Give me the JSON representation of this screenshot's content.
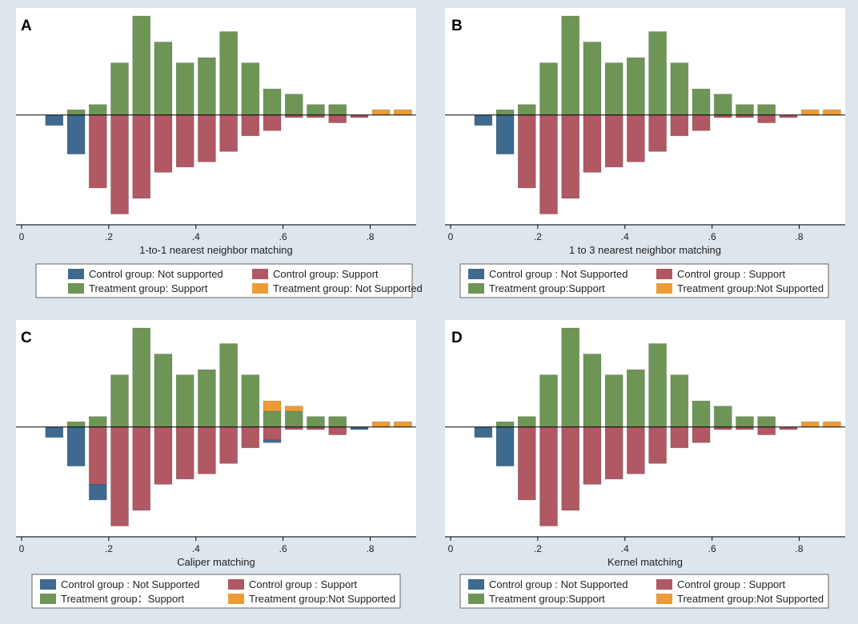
{
  "chart_data": [
    {
      "type": "bar",
      "panel": "A",
      "title": "",
      "xlabel": "1-to-1 nearest neighbor matching",
      "ylabel": "",
      "xlim": [
        0,
        0.9
      ],
      "ylim": [
        -20,
        19
      ],
      "xticks": [
        0,
        0.2,
        0.4,
        0.6,
        0.8
      ],
      "xtick_labels": [
        "0",
        ".2",
        ".4",
        ".6",
        ".8"
      ],
      "grid": false,
      "legend": {
        "position": "bottom",
        "entries": [
          {
            "key": "control_not_supported",
            "label": "Control group: Not supported"
          },
          {
            "key": "control_support",
            "label": "Control group: Support"
          },
          {
            "key": "treatment_support",
            "label": "Treatment group: Support"
          },
          {
            "key": "treatment_not_supported",
            "label": "Treatment group: Not Supported"
          }
        ]
      },
      "bin_centers": [
        0.075,
        0.125,
        0.175,
        0.225,
        0.275,
        0.325,
        0.375,
        0.425,
        0.475,
        0.525,
        0.575,
        0.625,
        0.675,
        0.725,
        0.775,
        0.825,
        0.875
      ],
      "series": [
        {
          "key": "treatment_support",
          "direction": "up",
          "values": [
            0,
            1,
            2,
            10,
            19,
            14,
            10,
            11,
            16,
            10,
            5,
            4,
            2,
            2,
            0,
            0,
            0
          ]
        },
        {
          "key": "treatment_not_supported",
          "direction": "up",
          "values": [
            0,
            0,
            0,
            0,
            0,
            0,
            0,
            0,
            0,
            0,
            0,
            0,
            0,
            0,
            0,
            1,
            1
          ]
        },
        {
          "key": "control_support",
          "direction": "down",
          "values": [
            0,
            0,
            14,
            19,
            16,
            11,
            10,
            9,
            7,
            4,
            3,
            0.5,
            0.5,
            1.5,
            0.5,
            0,
            0
          ]
        },
        {
          "key": "control_not_supported",
          "direction": "down",
          "values": [
            2,
            7.5,
            0,
            0,
            0,
            0,
            0,
            0,
            0,
            0,
            0,
            0,
            0,
            0,
            0,
            0,
            0
          ]
        }
      ]
    },
    {
      "type": "bar",
      "panel": "B",
      "title": "",
      "xlabel": "1 to 3 nearest neighbor matching",
      "ylabel": "",
      "xlim": [
        0,
        0.9
      ],
      "ylim": [
        -20,
        19
      ],
      "xticks": [
        0,
        0.2,
        0.4,
        0.6,
        0.8
      ],
      "xtick_labels": [
        "0",
        ".2",
        ".4",
        ".6",
        ".8"
      ],
      "grid": false,
      "legend": {
        "position": "bottom",
        "entries": [
          {
            "key": "control_not_supported",
            "label": "Control group : Not Supported"
          },
          {
            "key": "control_support",
            "label": "Control group : Support"
          },
          {
            "key": "treatment_support",
            "label": "Treatment group:Support"
          },
          {
            "key": "treatment_not_supported",
            "label": "Treatment group:Not Supported"
          }
        ]
      },
      "bin_centers": [
        0.075,
        0.125,
        0.175,
        0.225,
        0.275,
        0.325,
        0.375,
        0.425,
        0.475,
        0.525,
        0.575,
        0.625,
        0.675,
        0.725,
        0.775,
        0.825,
        0.875
      ],
      "series": [
        {
          "key": "treatment_support",
          "direction": "up",
          "values": [
            0,
            1,
            2,
            10,
            19,
            14,
            10,
            11,
            16,
            10,
            5,
            4,
            2,
            2,
            0,
            0,
            0
          ]
        },
        {
          "key": "treatment_not_supported",
          "direction": "up",
          "values": [
            0,
            0,
            0,
            0,
            0,
            0,
            0,
            0,
            0,
            0,
            0,
            0,
            0,
            0,
            0,
            1,
            1
          ]
        },
        {
          "key": "control_support",
          "direction": "down",
          "values": [
            0,
            0,
            14,
            19,
            16,
            11,
            10,
            9,
            7,
            4,
            3,
            0.5,
            0.5,
            1.5,
            0.5,
            0,
            0
          ]
        },
        {
          "key": "control_not_supported",
          "direction": "down",
          "values": [
            2,
            7.5,
            0,
            0,
            0,
            0,
            0,
            0,
            0,
            0,
            0,
            0,
            0,
            0,
            0,
            0,
            0
          ]
        }
      ]
    },
    {
      "type": "bar",
      "panel": "C",
      "title": "",
      "xlabel": "Caliper matching",
      "ylabel": "",
      "xlim": [
        0,
        0.9
      ],
      "ylim": [
        -20,
        19
      ],
      "xticks": [
        0,
        0.2,
        0.4,
        0.6,
        0.8
      ],
      "xtick_labels": [
        "0",
        ".2",
        ".4",
        ".6",
        ".8"
      ],
      "grid": false,
      "legend": {
        "position": "bottom",
        "entries": [
          {
            "key": "control_not_supported",
            "label": "Control group : Not Supported"
          },
          {
            "key": "control_support",
            "label": "Control group : Support"
          },
          {
            "key": "treatment_support",
            "label": "Treatment group：Support"
          },
          {
            "key": "treatment_not_supported",
            "label": "Treatment group:Not Supported"
          }
        ]
      },
      "bin_centers": [
        0.075,
        0.125,
        0.175,
        0.225,
        0.275,
        0.325,
        0.375,
        0.425,
        0.475,
        0.525,
        0.575,
        0.625,
        0.675,
        0.725,
        0.775,
        0.825,
        0.875
      ],
      "series": [
        {
          "key": "treatment_support",
          "direction": "up",
          "values": [
            0,
            1,
            2,
            10,
            19,
            14,
            10,
            11,
            16,
            10,
            3,
            3,
            2,
            2,
            0,
            0,
            0
          ]
        },
        {
          "key": "treatment_not_supported",
          "direction": "up",
          "values": [
            0,
            0,
            0,
            0,
            0,
            0,
            0,
            0,
            0,
            0,
            2,
            1,
            0,
            0,
            0,
            1,
            1
          ]
        },
        {
          "key": "control_support",
          "direction": "down",
          "values": [
            0,
            0,
            11,
            19,
            16,
            11,
            10,
            9,
            7,
            4,
            2.5,
            0.5,
            0.5,
            1.5,
            0,
            0,
            0
          ]
        },
        {
          "key": "control_not_supported",
          "direction": "down",
          "values": [
            2,
            7.5,
            3,
            0,
            0,
            0,
            0,
            0,
            0,
            0,
            0.5,
            0,
            0,
            0,
            0.5,
            0,
            0
          ]
        }
      ]
    },
    {
      "type": "bar",
      "panel": "D",
      "title": "",
      "xlabel": "Kernel matching",
      "ylabel": "",
      "xlim": [
        0,
        0.9
      ],
      "ylim": [
        -20,
        19
      ],
      "xticks": [
        0,
        0.2,
        0.4,
        0.6,
        0.8
      ],
      "xtick_labels": [
        "0",
        ".2",
        ".4",
        ".6",
        ".8"
      ],
      "grid": false,
      "legend": {
        "position": "bottom",
        "entries": [
          {
            "key": "control_not_supported",
            "label": "Control group : Not Supported"
          },
          {
            "key": "control_support",
            "label": "Control group : Support"
          },
          {
            "key": "treatment_support",
            "label": "Treatment group:Support"
          },
          {
            "key": "treatment_not_supported",
            "label": "Treatment group:Not Supported"
          }
        ]
      },
      "bin_centers": [
        0.075,
        0.125,
        0.175,
        0.225,
        0.275,
        0.325,
        0.375,
        0.425,
        0.475,
        0.525,
        0.575,
        0.625,
        0.675,
        0.725,
        0.775,
        0.825,
        0.875
      ],
      "series": [
        {
          "key": "treatment_support",
          "direction": "up",
          "values": [
            0,
            1,
            2,
            10,
            19,
            14,
            10,
            11,
            16,
            10,
            5,
            4,
            2,
            2,
            0,
            0,
            0
          ]
        },
        {
          "key": "treatment_not_supported",
          "direction": "up",
          "values": [
            0,
            0,
            0,
            0,
            0,
            0,
            0,
            0,
            0,
            0,
            0,
            0,
            0,
            0,
            0,
            1,
            1
          ]
        },
        {
          "key": "control_support",
          "direction": "down",
          "values": [
            0,
            0,
            14,
            19,
            16,
            11,
            10,
            9,
            7,
            4,
            3,
            0.5,
            0.5,
            1.5,
            0.5,
            0,
            0
          ]
        },
        {
          "key": "control_not_supported",
          "direction": "down",
          "values": [
            2,
            7.5,
            0,
            0,
            0,
            0,
            0,
            0,
            0,
            0,
            0,
            0,
            0,
            0,
            0,
            0,
            0
          ]
        }
      ]
    }
  ],
  "colors": {
    "page_background": "#dde6ec",
    "plot_background": "#ffffff",
    "axis": "#000000",
    "control_not_supported": "#3e6a8f",
    "control_support": "#b05863",
    "treatment_support": "#6e9556",
    "treatment_not_supported": "#ed9b35"
  }
}
